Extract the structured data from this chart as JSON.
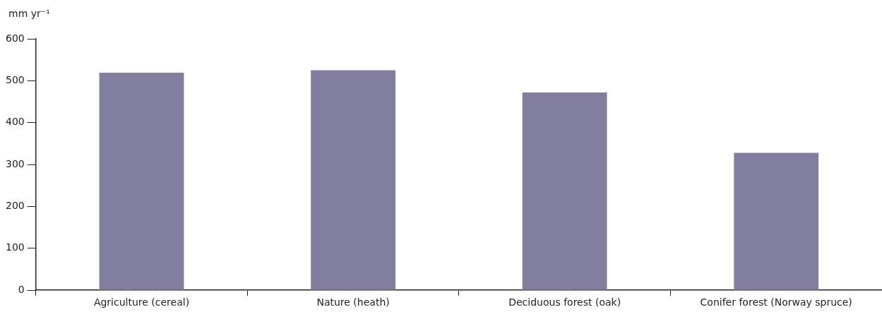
{
  "chart_data": {
    "type": "bar",
    "ylabel": "mm yr⁻¹",
    "categories": [
      "Agriculture (cereal)",
      "Nature (heath)",
      "Deciduous forest (oak)",
      "Conifer forest (Norway spruce)"
    ],
    "values": [
      519,
      525,
      472,
      328
    ],
    "color": "#817e9e",
    "ylim": [
      0,
      600
    ],
    "yticks": [
      0,
      100,
      200,
      300,
      400,
      500,
      600
    ],
    "grid": false,
    "legend": false
  }
}
